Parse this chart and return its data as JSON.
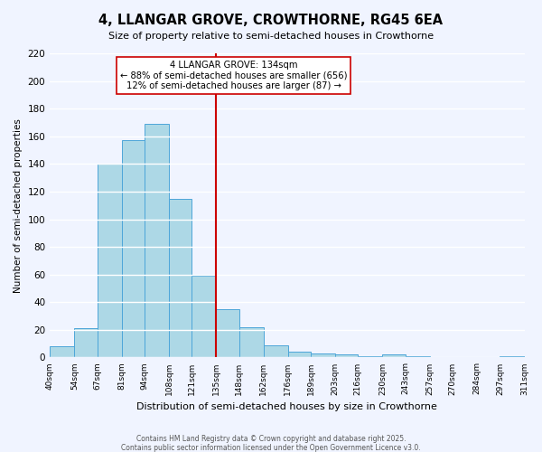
{
  "title": "4, LLANGAR GROVE, CROWTHORNE, RG45 6EA",
  "subtitle": "Size of property relative to semi-detached houses in Crowthorne",
  "xlabel": "Distribution of semi-detached houses by size in Crowthorne",
  "ylabel": "Number of semi-detached properties",
  "bin_edges": [
    40,
    54,
    67,
    81,
    94,
    108,
    121,
    135,
    148,
    162,
    176,
    189,
    203,
    216,
    230,
    243,
    257,
    270,
    284,
    297,
    311
  ],
  "bin_labels": [
    "40sqm",
    "54sqm",
    "67sqm",
    "81sqm",
    "94sqm",
    "108sqm",
    "121sqm",
    "135sqm",
    "148sqm",
    "162sqm",
    "176sqm",
    "189sqm",
    "203sqm",
    "216sqm",
    "230sqm",
    "243sqm",
    "257sqm",
    "270sqm",
    "284sqm",
    "297sqm",
    "311sqm"
  ],
  "counts": [
    8,
    21,
    140,
    157,
    169,
    115,
    59,
    35,
    22,
    9,
    4,
    3,
    2,
    1,
    2,
    1,
    0,
    0,
    0,
    1
  ],
  "bar_color": "#add8e6",
  "bar_edge_color": "#4da6d9",
  "vline_x": 135,
  "vline_color": "#cc0000",
  "annotation_title": "4 LLANGAR GROVE: 134sqm",
  "annotation_line1": "← 88% of semi-detached houses are smaller (656)",
  "annotation_line2": "12% of semi-detached houses are larger (87) →",
  "annotation_box_color": "#ffffff",
  "annotation_box_edge": "#cc0000",
  "ylim": [
    0,
    220
  ],
  "yticks": [
    0,
    20,
    40,
    60,
    80,
    100,
    120,
    140,
    160,
    180,
    200,
    220
  ],
  "footer1": "Contains HM Land Registry data © Crown copyright and database right 2025.",
  "footer2": "Contains public sector information licensed under the Open Government Licence v3.0.",
  "bg_color": "#f0f4ff",
  "grid_color": "#ffffff"
}
